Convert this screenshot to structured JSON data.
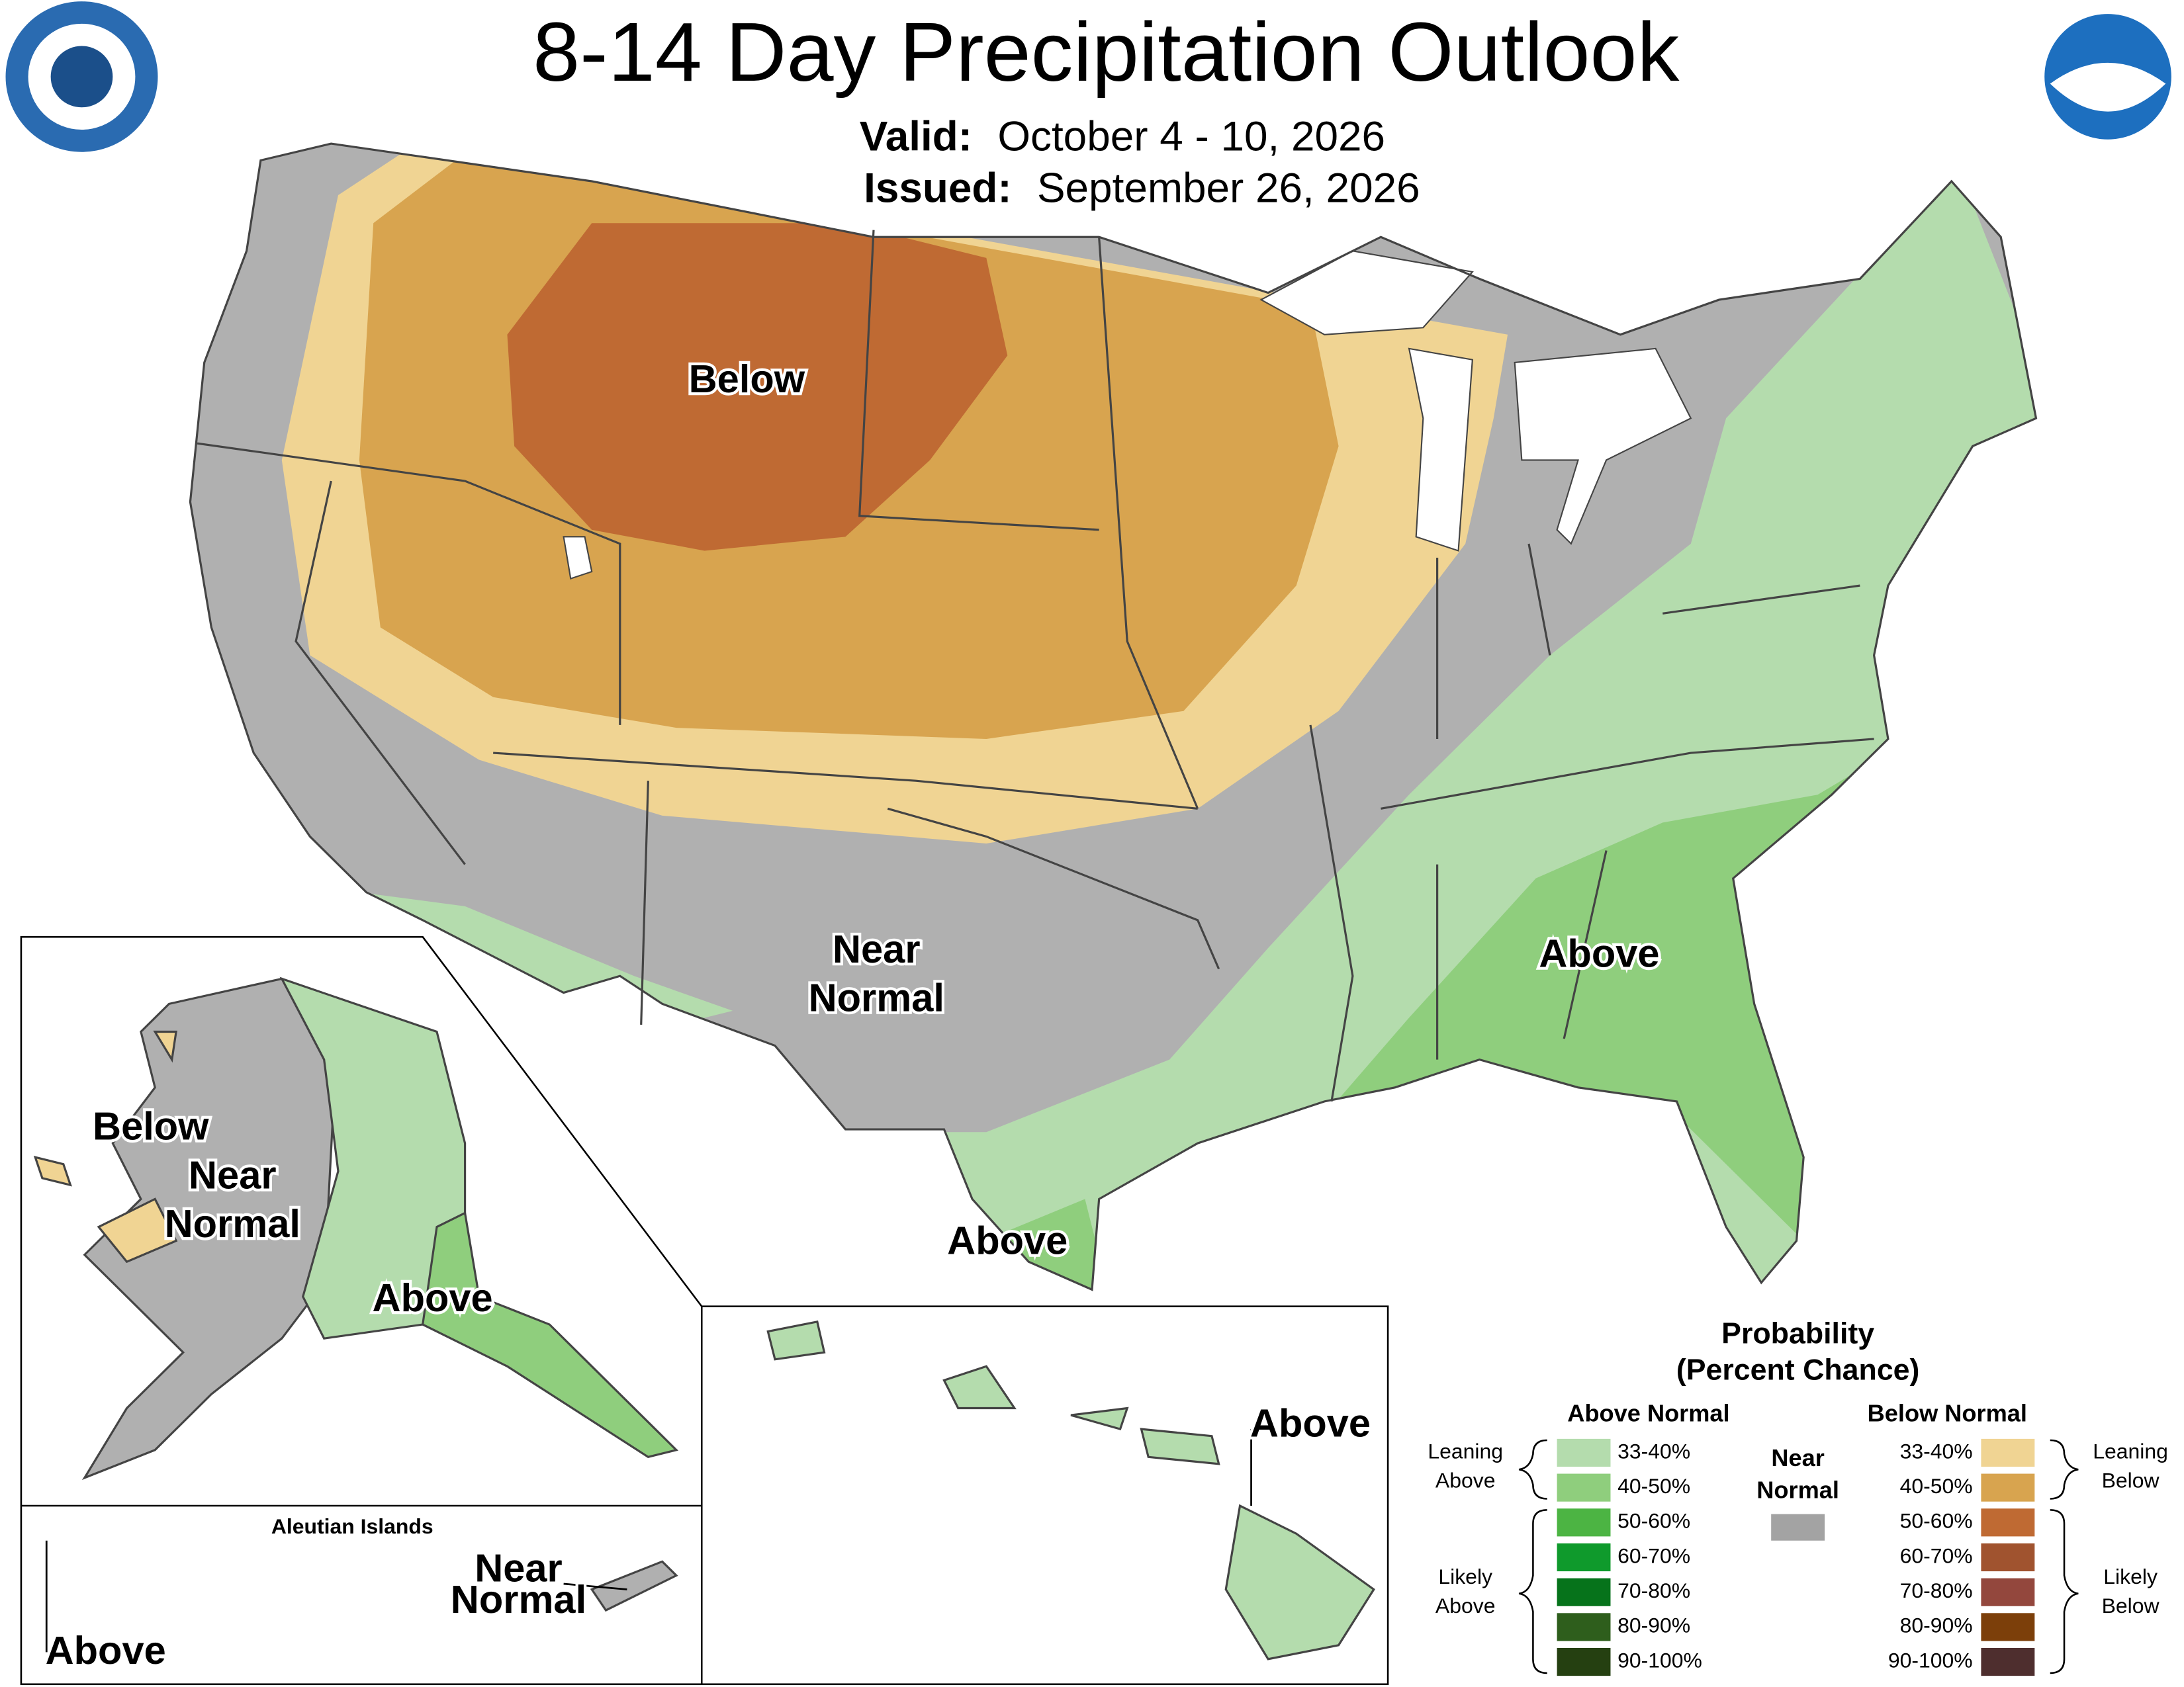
{
  "header": {
    "title": "8-14 Day Precipitation Outlook",
    "valid_label": "Valid:",
    "valid": "October 4 - 10, 2026",
    "issued_label": "Issued:",
    "issued": "September 26, 2026"
  },
  "conus_labels": [
    [
      "Below"
    ],
    [
      "Near",
      "Normal"
    ],
    [
      "Above"
    ],
    [
      "Above"
    ]
  ],
  "alaska_labels": [
    [
      "Below"
    ],
    [
      "Near",
      "Normal"
    ],
    [
      "Above"
    ]
  ],
  "aleutian": {
    "title": "Aleutian Islands",
    "labels": [
      [
        "Near",
        "Normal"
      ],
      [
        "Above"
      ]
    ]
  },
  "hawaii_labels": [
    [
      "Above"
    ]
  ],
  "legend": {
    "title": [
      "Probability",
      "(Percent Chance)"
    ],
    "above": {
      "heading": "Above Normal",
      "items": [
        {
          "label": "33-40%",
          "color": "#b4dcad"
        },
        {
          "label": "40-50%",
          "color": "#8fce7d"
        },
        {
          "label": "50-60%",
          "color": "#4cb443"
        },
        {
          "label": "60-70%",
          "color": "#0f9a2c"
        },
        {
          "label": "70-80%",
          "color": "#06731b"
        },
        {
          "label": "80-90%",
          "color": "#2e5e1c"
        },
        {
          "label": "90-100%",
          "color": "#254011"
        }
      ],
      "groups": [
        [
          "Leaning",
          "Above"
        ],
        [
          "Likely",
          "Above"
        ]
      ]
    },
    "near": {
      "heading": [
        "Near",
        "Normal"
      ],
      "color": "#a3a3a3"
    },
    "below": {
      "heading": "Below Normal",
      "items": [
        {
          "label": "33-40%",
          "color": "#f0d493"
        },
        {
          "label": "40-50%",
          "color": "#d8a44f"
        },
        {
          "label": "50-60%",
          "color": "#bf6a33"
        },
        {
          "label": "60-70%",
          "color": "#a0532f"
        },
        {
          "label": "70-80%",
          "color": "#93473d"
        },
        {
          "label": "80-90%",
          "color": "#7c3f0a"
        },
        {
          "label": "90-100%",
          "color": "#4e2e2e"
        }
      ],
      "groups": [
        [
          "Leaning",
          "Below"
        ],
        [
          "Likely",
          "Below"
        ]
      ]
    }
  }
}
